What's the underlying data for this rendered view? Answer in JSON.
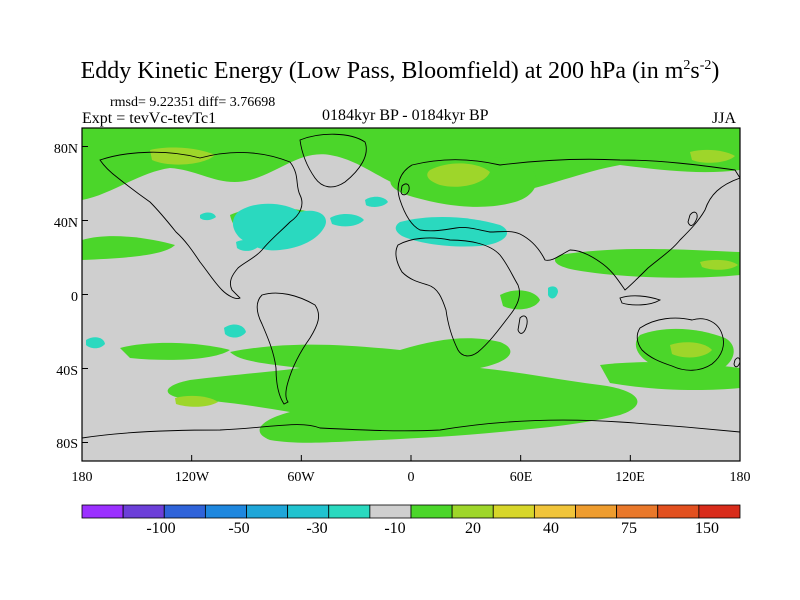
{
  "title": {
    "prefix": "Eddy Kinetic Energy (Low Pass, Bloomfield) at 200 hPa (in m",
    "exp1": "2",
    "mid": "s",
    "exp2": "-2",
    "suffix": ")"
  },
  "stats": "rmsd= 9.22351 diff= 3.76698",
  "experiment": "Expt = tevVc-tevTc1",
  "period": "0184kyr BP - 0184kyr BP",
  "season": "JJA",
  "axes": {
    "lat_labels": [
      "80N",
      "40N",
      "0",
      "40S",
      "80S"
    ],
    "lat_values": [
      80,
      40,
      0,
      -40,
      -80
    ],
    "lon_labels": [
      "180",
      "120W",
      "60W",
      "0",
      "60E",
      "120E",
      "180"
    ],
    "lon_values": [
      -180,
      -120,
      -60,
      0,
      60,
      120,
      180
    ]
  },
  "colorbar": {
    "colors": [
      "#9b30ff",
      "#6c3fd8",
      "#2f63d9",
      "#1e87de",
      "#1fa6d8",
      "#21c3cf",
      "#2ad9bf",
      "#cfcfcf",
      "#4bd62a",
      "#9ed62a",
      "#d7d62a",
      "#f0c43a",
      "#ee9c2e",
      "#e9782a",
      "#e2501f",
      "#d82c1b"
    ],
    "tick_labels": [
      "-100",
      "-50",
      "-30",
      "-10",
      "20",
      "40",
      "75",
      "150"
    ]
  },
  "map_colors": {
    "background": "#cfcfcf",
    "positive": "#4bd62a",
    "positive_strong": "#9ed62a",
    "negative": "#2ad9bf",
    "coast": "#000000"
  }
}
